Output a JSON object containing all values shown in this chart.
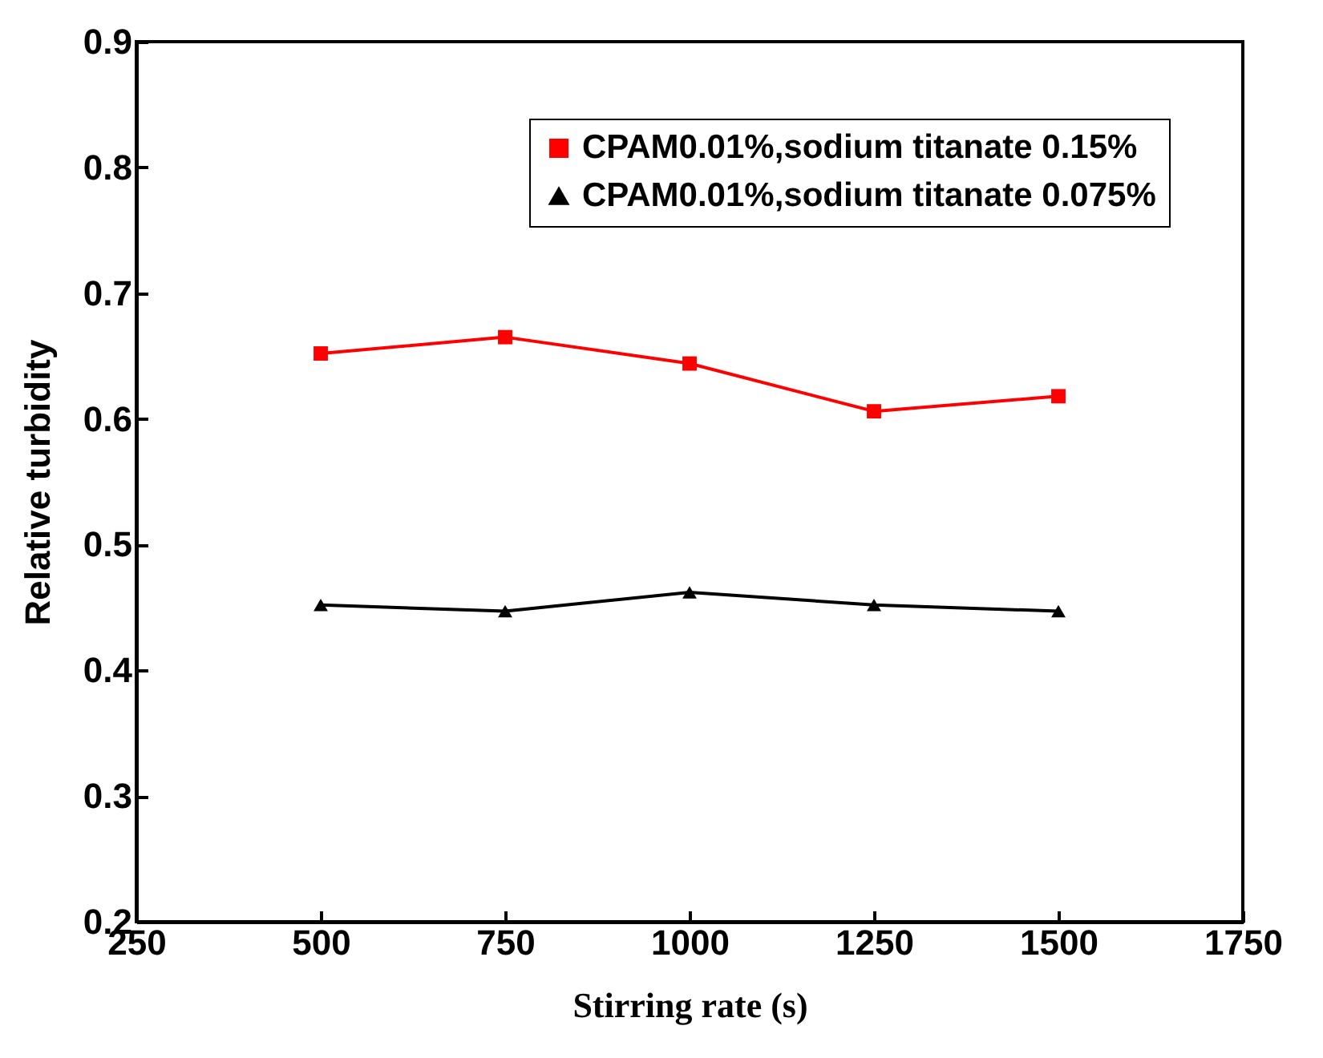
{
  "chart_data": {
    "type": "line",
    "xlabel": "Stirring rate (s)",
    "ylabel": "Relative turbidity",
    "x": [
      500,
      750,
      1000,
      1250,
      1500
    ],
    "series": [
      {
        "name": "CPAM0.01%,sodium titanate 0.15%",
        "color": "#ff0000",
        "marker": "square",
        "values": [
          0.652,
          0.665,
          0.644,
          0.606,
          0.618
        ]
      },
      {
        "name": "CPAM0.01%,sodium titanate 0.075%",
        "color": "#000000",
        "marker": "triangle",
        "values": [
          0.452,
          0.447,
          0.462,
          0.452,
          0.447
        ]
      }
    ],
    "xlim": [
      250,
      1750
    ],
    "xticks": [
      250,
      500,
      750,
      1000,
      1250,
      1500,
      1750
    ],
    "ylim": [
      0.2,
      0.9
    ],
    "yticks": [
      0.2,
      0.3,
      0.4,
      0.5,
      0.6,
      0.7,
      0.8,
      0.9
    ],
    "grid": false,
    "legend": "top right",
    "line_style": "solid"
  }
}
